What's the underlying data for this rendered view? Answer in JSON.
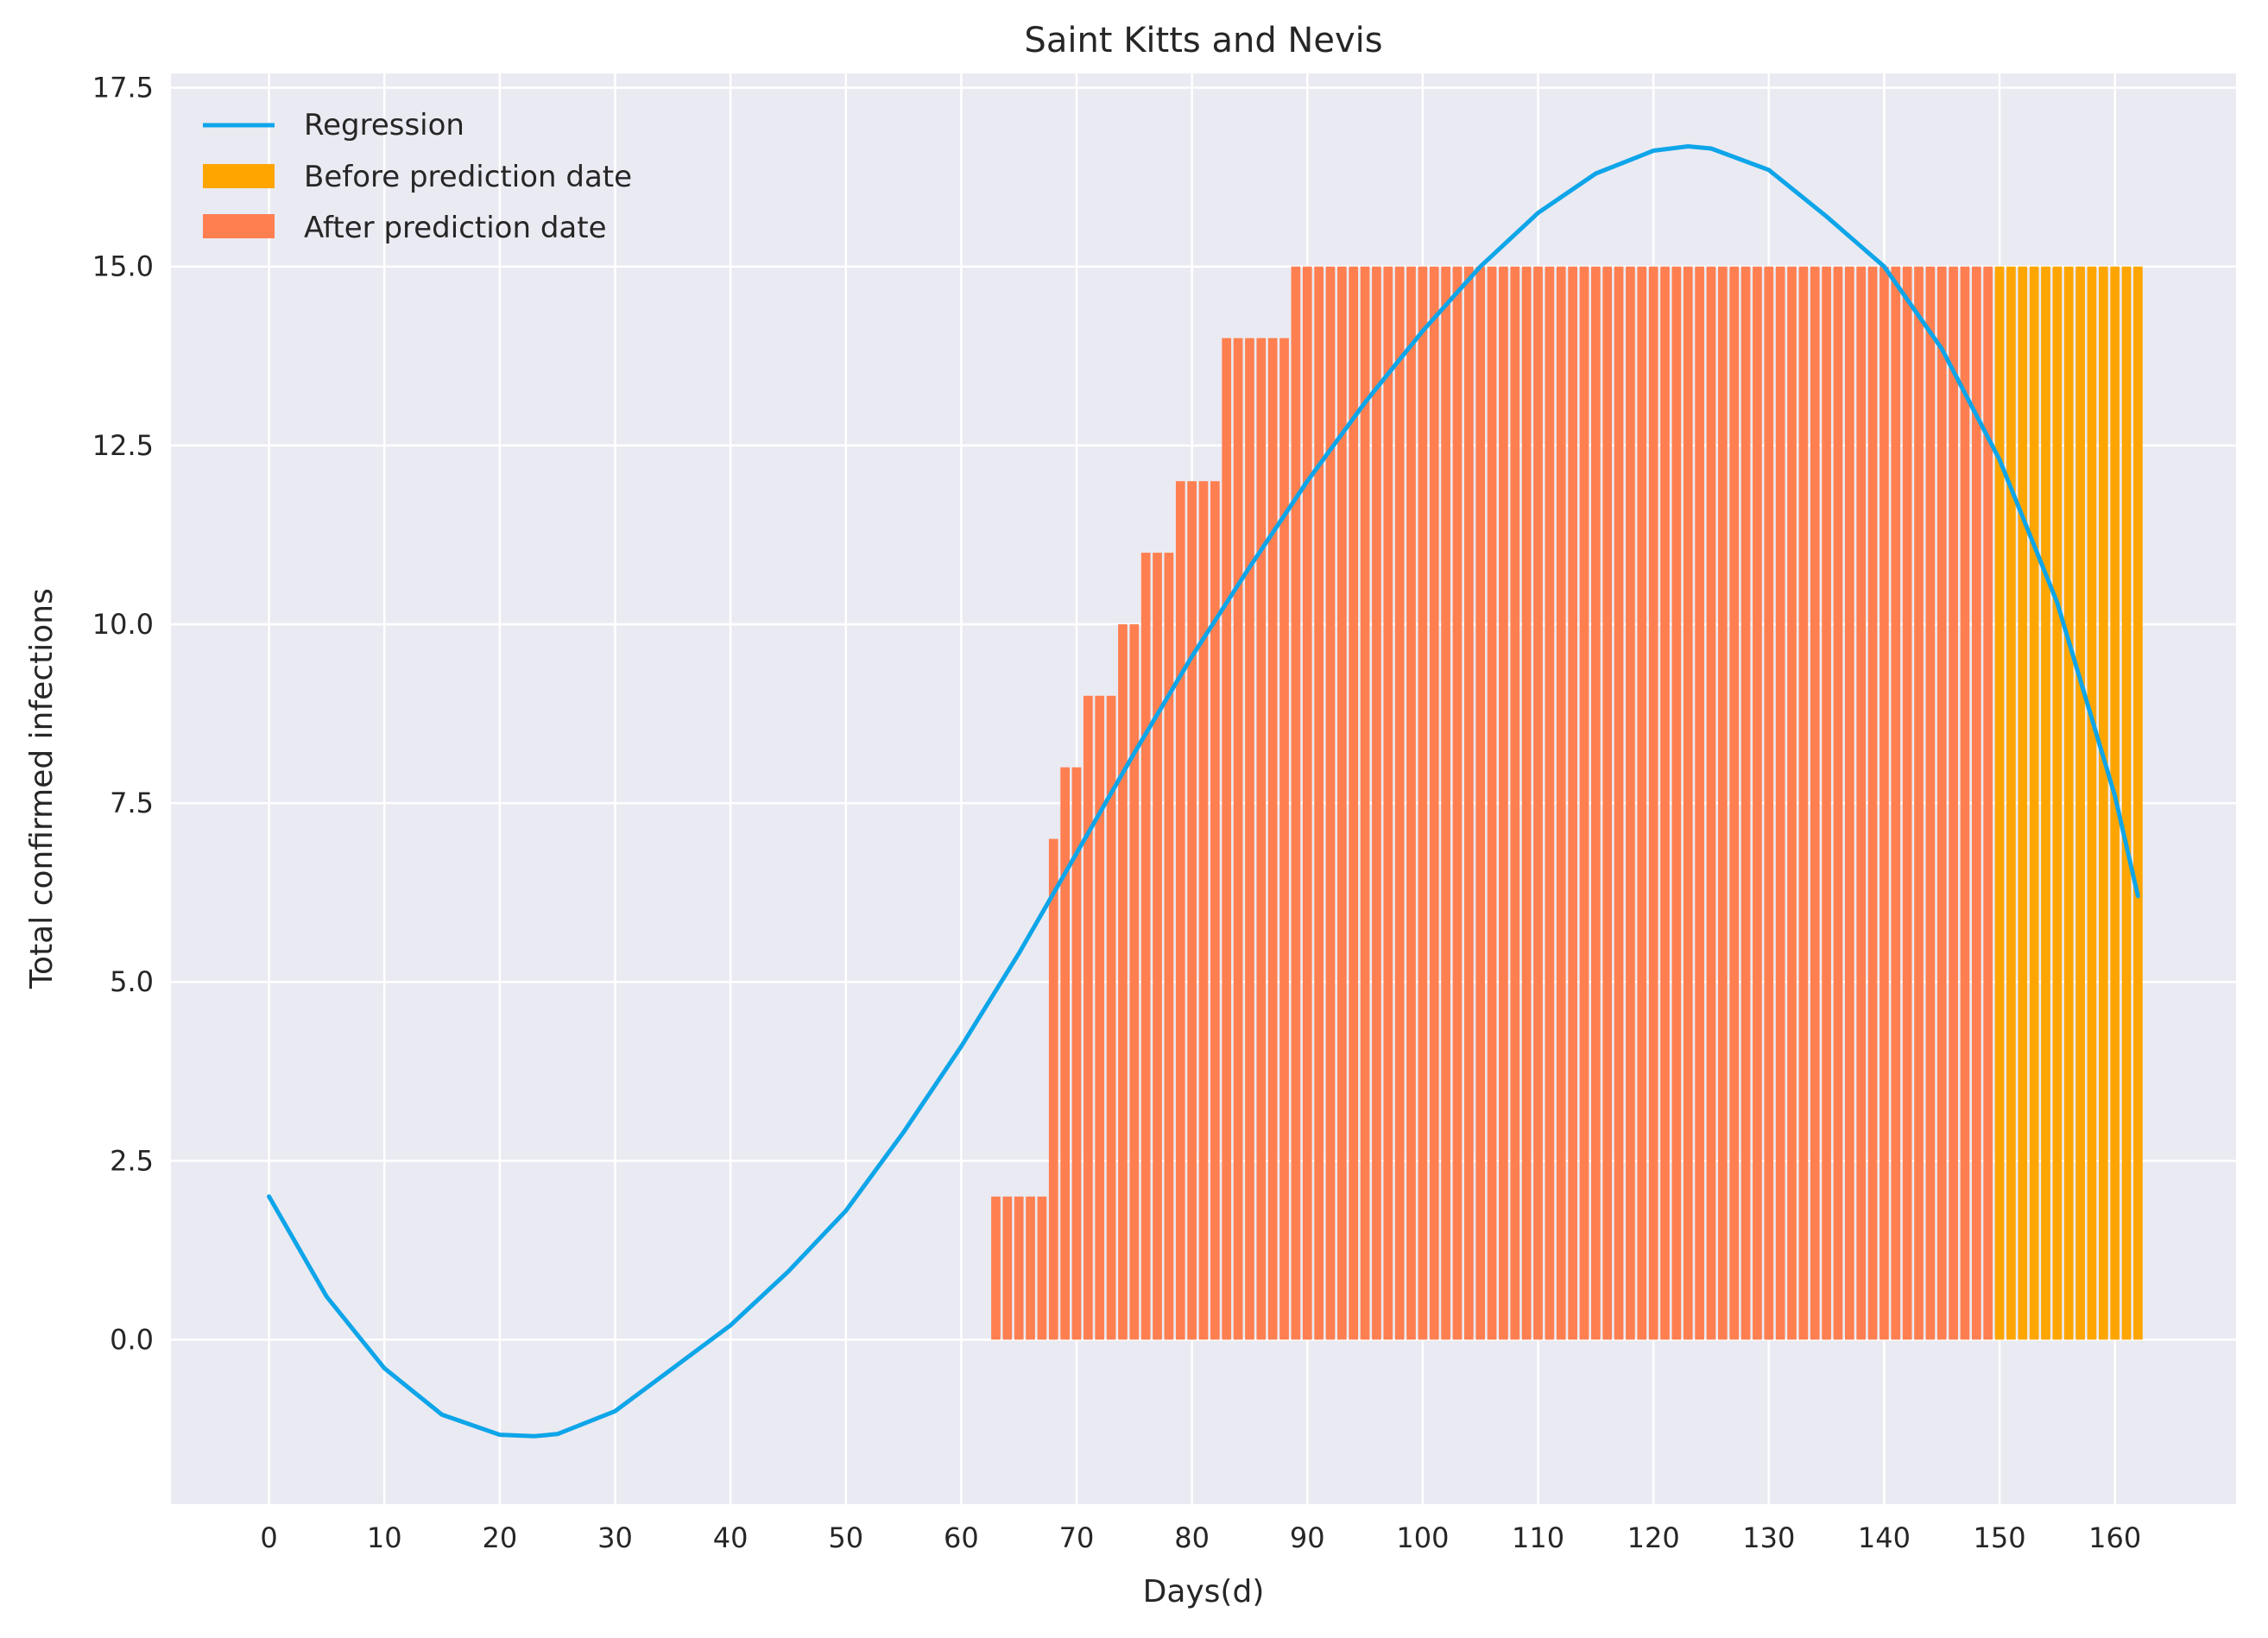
{
  "chart_data": {
    "type": "bar",
    "title": "Saint Kitts and Nevis",
    "xlabel": "Days(d)",
    "ylabel": "Total confirmed infections",
    "xlim": [
      -8.5,
      170.5
    ],
    "ylim": [
      -2.3,
      17.7
    ],
    "xticks": [
      0,
      10,
      20,
      30,
      40,
      50,
      60,
      70,
      80,
      90,
      100,
      110,
      120,
      130,
      140,
      150,
      160
    ],
    "xtick_labels": [
      "0",
      "10",
      "20",
      "30",
      "40",
      "50",
      "60",
      "70",
      "80",
      "90",
      "100",
      "110",
      "120",
      "130",
      "140",
      "150",
      "160"
    ],
    "yticks": [
      0,
      2.5,
      5,
      7.5,
      10,
      12.5,
      15,
      17.5
    ],
    "ytick_labels": [
      "0.0",
      "2.5",
      "5.0",
      "7.5",
      "10.0",
      "12.5",
      "15.0",
      "17.5"
    ],
    "grid": true,
    "legend_position": "top-left",
    "legend": [
      "Regression",
      "Before prediction date",
      "After prediction date"
    ],
    "colors": {
      "regression": "#0ea5e9",
      "before": "#ffa500",
      "after": "#ff7f50",
      "plot_background": "#eaeaf2",
      "grid": "#ffffff"
    },
    "series": [
      {
        "name": "After prediction date",
        "x_start": 63,
        "x_end": 149,
        "values": [
          2,
          2,
          2,
          2,
          2,
          7,
          8,
          8,
          9,
          9,
          9,
          10,
          10,
          11,
          11,
          11,
          12,
          12,
          12,
          12,
          14,
          14,
          14,
          14,
          14,
          14,
          15,
          15,
          15,
          15,
          15,
          15,
          15,
          15,
          15,
          15,
          15,
          15,
          15,
          15,
          15,
          15,
          15,
          15,
          15,
          15,
          15,
          15,
          15,
          15,
          15,
          15,
          15,
          15,
          15,
          15,
          15,
          15,
          15,
          15,
          15,
          15,
          15,
          15,
          15,
          15,
          15,
          15,
          15,
          15,
          15,
          15,
          15,
          15,
          15,
          15,
          15,
          15,
          15,
          15,
          15,
          15,
          15,
          15,
          15,
          15,
          15
        ]
      },
      {
        "name": "Before prediction date",
        "x_start": 150,
        "x_end": 162,
        "values": [
          15,
          15,
          15,
          15,
          15,
          15,
          15,
          15,
          15,
          15,
          15,
          15,
          15
        ]
      },
      {
        "name": "Regression",
        "type": "line",
        "x": [
          0,
          5,
          10,
          15,
          20,
          23,
          25,
          30,
          35,
          40,
          45,
          50,
          55,
          60,
          65,
          70,
          75,
          80,
          85,
          90,
          95,
          100,
          105,
          110,
          115,
          120,
          123,
          125,
          130,
          135,
          140,
          145,
          150,
          155,
          160,
          162
        ],
        "y": [
          2.0,
          0.6,
          -0.4,
          -1.05,
          -1.33,
          -1.35,
          -1.32,
          -1.0,
          -0.4,
          0.2,
          0.95,
          1.8,
          2.9,
          4.1,
          5.4,
          6.8,
          8.2,
          9.55,
          10.8,
          12.0,
          13.1,
          14.1,
          15.0,
          15.75,
          16.3,
          16.62,
          16.68,
          16.65,
          16.35,
          15.7,
          15.0,
          13.85,
          12.3,
          10.3,
          7.6,
          6.2
        ]
      }
    ]
  }
}
